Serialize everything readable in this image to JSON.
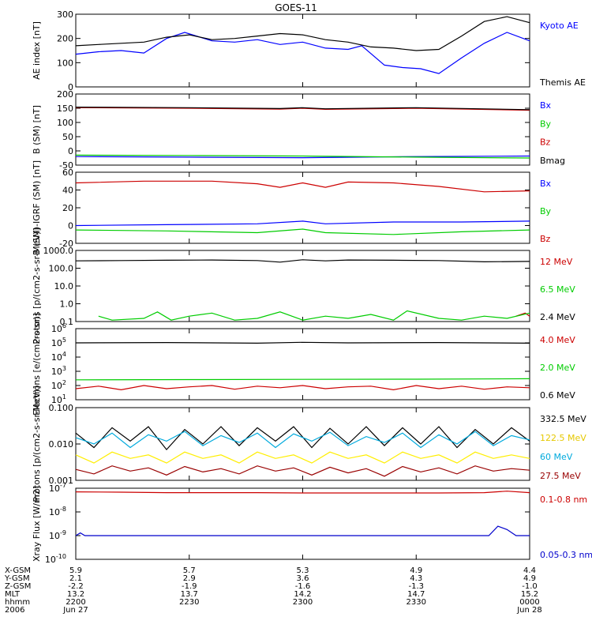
{
  "title": "GOES-11",
  "chart_data": [
    {
      "type": "line",
      "ylabel": "AE index [nT]",
      "ylim": [
        0,
        300
      ],
      "yticks": [
        {
          "v": 0,
          "t": "0"
        },
        {
          "v": 100,
          "t": "100"
        },
        {
          "v": 200,
          "t": "200"
        },
        {
          "v": 300,
          "t": "300"
        }
      ],
      "series": [
        {
          "name": "Kyoto AE",
          "color": "#0000ff",
          "x": [
            0,
            0.05,
            0.1,
            0.15,
            0.2,
            0.24,
            0.3,
            0.35,
            0.4,
            0.45,
            0.5,
            0.55,
            0.6,
            0.63,
            0.68,
            0.72,
            0.76,
            0.8,
            0.85,
            0.9,
            0.95,
            1.0
          ],
          "y": [
            135,
            145,
            150,
            140,
            200,
            225,
            190,
            185,
            195,
            175,
            185,
            160,
            155,
            170,
            90,
            80,
            75,
            55,
            120,
            180,
            225,
            190
          ]
        },
        {
          "name": "Themis AE",
          "color": "#000000",
          "x": [
            0,
            0.05,
            0.1,
            0.15,
            0.2,
            0.25,
            0.3,
            0.35,
            0.4,
            0.45,
            0.5,
            0.55,
            0.6,
            0.65,
            0.7,
            0.75,
            0.8,
            0.85,
            0.9,
            0.95,
            1.0
          ],
          "y": [
            170,
            175,
            180,
            185,
            205,
            215,
            195,
            200,
            210,
            220,
            215,
            195,
            185,
            165,
            160,
            150,
            155,
            210,
            270,
            290,
            265
          ]
        }
      ]
    },
    {
      "type": "line",
      "ylabel": "B (SM) [nT]",
      "ylim": [
        -50,
        200
      ],
      "yticks": [
        {
          "v": -50,
          "t": "-50"
        },
        {
          "v": 0,
          "t": "0"
        },
        {
          "v": 50,
          "t": "50"
        },
        {
          "v": 100,
          "t": "100"
        },
        {
          "v": 150,
          "t": "150"
        },
        {
          "v": 200,
          "t": "200"
        }
      ],
      "series": [
        {
          "name": "Bx",
          "color": "#0000ff",
          "x": [
            0,
            0.25,
            0.5,
            0.75,
            1.0
          ],
          "y": [
            -20,
            -22,
            -24,
            -20,
            -18
          ]
        },
        {
          "name": "By",
          "color": "#00cc00",
          "x": [
            0,
            0.25,
            0.5,
            0.75,
            1.0
          ],
          "y": [
            -15,
            -16,
            -18,
            -22,
            -25
          ]
        },
        {
          "name": "Bz",
          "color": "#cc0000",
          "x": [
            0,
            0.25,
            0.45,
            0.5,
            0.55,
            0.75,
            1.0
          ],
          "y": [
            152,
            150,
            147,
            150,
            146,
            150,
            143
          ]
        },
        {
          "name": "Bmag",
          "color": "#000000",
          "x": [
            0,
            0.25,
            0.45,
            0.5,
            0.55,
            0.75,
            1.0
          ],
          "y": [
            154,
            152,
            149,
            152,
            148,
            152,
            145
          ]
        }
      ]
    },
    {
      "type": "line",
      "ylabel": "B (SM)-IGRF (SM) [nT]",
      "ylim": [
        -20,
        60
      ],
      "yticks": [
        {
          "v": -20,
          "t": "-20"
        },
        {
          "v": 0,
          "t": "0"
        },
        {
          "v": 20,
          "t": "20"
        },
        {
          "v": 40,
          "t": "40"
        },
        {
          "v": 60,
          "t": "60"
        }
      ],
      "series": [
        {
          "name": "Bx",
          "color": "#0000ff",
          "x": [
            0,
            0.2,
            0.4,
            0.5,
            0.55,
            0.7,
            0.85,
            1.0
          ],
          "y": [
            0,
            1,
            2,
            5,
            2,
            4,
            4,
            5
          ]
        },
        {
          "name": "By",
          "color": "#00cc00",
          "x": [
            0,
            0.2,
            0.4,
            0.5,
            0.55,
            0.7,
            0.85,
            1.0
          ],
          "y": [
            -5,
            -6,
            -8,
            -4,
            -8,
            -10,
            -7,
            -5
          ]
        },
        {
          "name": "Bz",
          "color": "#cc0000",
          "x": [
            0,
            0.15,
            0.3,
            0.4,
            0.45,
            0.5,
            0.55,
            0.6,
            0.7,
            0.8,
            0.9,
            1.0
          ],
          "y": [
            48,
            50,
            50,
            47,
            43,
            48,
            43,
            49,
            48,
            44,
            38,
            39
          ]
        }
      ]
    },
    {
      "type": "line",
      "ylabel": "Protons [p/(cm2-s-sr-MeV)]",
      "yscale": "log",
      "ylim": [
        0.1,
        1000
      ],
      "yticks": [
        {
          "v": 0.1,
          "t": "0.1"
        },
        {
          "v": 1,
          "t": "1.0"
        },
        {
          "v": 10,
          "t": "10.0"
        },
        {
          "v": 100,
          "t": "100.0"
        },
        {
          "v": 1000,
          "t": "1000.0"
        }
      ],
      "series": [
        {
          "name": "12 MeV",
          "color": "#cc0000",
          "x": [
            0.97,
            0.99,
            1.0
          ],
          "y": [
            0.2,
            0.3,
            0.2
          ]
        },
        {
          "name": "6.5 MeV",
          "color": "#00cc00",
          "x": [
            0.05,
            0.08,
            0.15,
            0.18,
            0.21,
            0.25,
            0.3,
            0.35,
            0.4,
            0.45,
            0.5,
            0.55,
            0.6,
            0.65,
            0.7,
            0.73,
            0.8,
            0.85,
            0.9,
            0.95,
            1.0
          ],
          "y": [
            0.2,
            0.12,
            0.15,
            0.35,
            0.12,
            0.2,
            0.3,
            0.12,
            0.15,
            0.35,
            0.12,
            0.2,
            0.15,
            0.25,
            0.12,
            0.4,
            0.15,
            0.12,
            0.2,
            0.15,
            0.3
          ]
        },
        {
          "name": "2.4 MeV",
          "color": "#000000",
          "x": [
            0,
            0.1,
            0.2,
            0.3,
            0.4,
            0.45,
            0.5,
            0.55,
            0.6,
            0.7,
            0.8,
            0.9,
            1.0
          ],
          "y": [
            260,
            270,
            280,
            290,
            270,
            220,
            300,
            260,
            290,
            280,
            270,
            230,
            240
          ]
        }
      ]
    },
    {
      "type": "line",
      "ylabel": "Electrons [e/(cm2-s-sr)]",
      "yscale": "log",
      "ylim": [
        10,
        1000000
      ],
      "yticks": [
        {
          "v": 10,
          "t": "10"
        },
        {
          "v": 100,
          "t": "10"
        },
        {
          "v": 1000,
          "t": "10"
        },
        {
          "v": 10000,
          "t": "10"
        },
        {
          "v": 100000,
          "t": "10"
        },
        {
          "v": 1000000,
          "t": "10"
        }
      ],
      "ytick_exponents": [
        "1",
        "2",
        "3",
        "4",
        "5",
        "6"
      ],
      "series": [
        {
          "name": "4.0 MeV",
          "color": "#cc0000",
          "x": [
            0,
            0.05,
            0.1,
            0.15,
            0.2,
            0.25,
            0.3,
            0.35,
            0.4,
            0.45,
            0.5,
            0.55,
            0.6,
            0.65,
            0.7,
            0.75,
            0.8,
            0.85,
            0.9,
            0.95,
            1.0
          ],
          "y": [
            60,
            90,
            50,
            100,
            60,
            80,
            100,
            55,
            90,
            70,
            100,
            60,
            80,
            90,
            50,
            100,
            60,
            90,
            55,
            80,
            70
          ]
        },
        {
          "name": "2.0 MeV",
          "color": "#00cc00",
          "x": [
            0,
            0.25,
            0.5,
            0.75,
            1.0
          ],
          "y": [
            250,
            260,
            270,
            280,
            300
          ]
        },
        {
          "name": "0.6 MeV",
          "color": "#000000",
          "x": [
            0,
            0.2,
            0.4,
            0.5,
            0.6,
            0.8,
            1.0
          ],
          "y": [
            100000,
            105000,
            95000,
            110000,
            100000,
            105000,
            95000
          ]
        }
      ]
    },
    {
      "type": "line",
      "ylabel": "Protons [p/(cm2-s-sr-MeV)]",
      "yscale": "log",
      "ylim": [
        0.001,
        0.1
      ],
      "yticks": [
        {
          "v": 0.001,
          "t": "0.001"
        },
        {
          "v": 0.01,
          "t": "0.010"
        },
        {
          "v": 0.1,
          "t": "0.100"
        }
      ],
      "series": [
        {
          "name": "332.5 MeV",
          "color": "#000000",
          "x": [
            0,
            0.04,
            0.08,
            0.12,
            0.16,
            0.2,
            0.24,
            0.28,
            0.32,
            0.36,
            0.4,
            0.44,
            0.48,
            0.52,
            0.56,
            0.6,
            0.64,
            0.68,
            0.72,
            0.76,
            0.8,
            0.84,
            0.88,
            0.92,
            0.96,
            1.0
          ],
          "y": [
            0.02,
            0.008,
            0.028,
            0.012,
            0.03,
            0.007,
            0.025,
            0.01,
            0.03,
            0.009,
            0.028,
            0.012,
            0.03,
            0.008,
            0.027,
            0.01,
            0.03,
            0.009,
            0.028,
            0.01,
            0.03,
            0.008,
            0.025,
            0.01,
            0.028,
            0.012
          ]
        },
        {
          "name": "122.5 MeV",
          "color": "#ffee00",
          "x": [
            0,
            0.04,
            0.08,
            0.12,
            0.16,
            0.2,
            0.24,
            0.28,
            0.32,
            0.36,
            0.4,
            0.44,
            0.48,
            0.52,
            0.56,
            0.6,
            0.64,
            0.68,
            0.72,
            0.76,
            0.8,
            0.84,
            0.88,
            0.92,
            0.96,
            1.0
          ],
          "y": [
            0.005,
            0.003,
            0.006,
            0.004,
            0.005,
            0.003,
            0.006,
            0.004,
            0.005,
            0.003,
            0.006,
            0.004,
            0.005,
            0.003,
            0.006,
            0.004,
            0.005,
            0.003,
            0.006,
            0.004,
            0.005,
            0.003,
            0.006,
            0.004,
            0.005,
            0.004
          ]
        },
        {
          "name": "60 MeV",
          "color": "#00aadd",
          "x": [
            0,
            0.04,
            0.08,
            0.12,
            0.16,
            0.2,
            0.24,
            0.28,
            0.32,
            0.36,
            0.4,
            0.44,
            0.48,
            0.52,
            0.56,
            0.6,
            0.64,
            0.68,
            0.72,
            0.76,
            0.8,
            0.84,
            0.88,
            0.92,
            0.96,
            1.0
          ],
          "y": [
            0.015,
            0.01,
            0.02,
            0.008,
            0.018,
            0.012,
            0.022,
            0.009,
            0.017,
            0.011,
            0.02,
            0.008,
            0.019,
            0.012,
            0.021,
            0.009,
            0.016,
            0.011,
            0.02,
            0.008,
            0.018,
            0.01,
            0.022,
            0.009,
            0.017,
            0.013
          ]
        },
        {
          "name": "27.5 MeV",
          "color": "#990000",
          "x": [
            0,
            0.04,
            0.08,
            0.12,
            0.16,
            0.2,
            0.24,
            0.28,
            0.32,
            0.36,
            0.4,
            0.44,
            0.48,
            0.52,
            0.56,
            0.6,
            0.64,
            0.68,
            0.72,
            0.76,
            0.8,
            0.84,
            0.88,
            0.92,
            0.96,
            1.0
          ],
          "y": [
            0.002,
            0.0015,
            0.0025,
            0.0018,
            0.0022,
            0.0014,
            0.0024,
            0.0017,
            0.0021,
            0.0015,
            0.0025,
            0.0018,
            0.0022,
            0.0014,
            0.0023,
            0.0016,
            0.0021,
            0.0013,
            0.0024,
            0.0017,
            0.0022,
            0.0015,
            0.0025,
            0.0018,
            0.0021,
            0.0019
          ]
        }
      ]
    },
    {
      "type": "line",
      "ylabel": "Xray Flux [W/m2]",
      "yscale": "log",
      "ylim": [
        1e-10,
        1e-07
      ],
      "yticks": [
        {
          "v": 1e-10,
          "t": "10"
        },
        {
          "v": 1e-09,
          "t": "10"
        },
        {
          "v": 1e-08,
          "t": "10"
        },
        {
          "v": 1e-07,
          "t": "10"
        }
      ],
      "ytick_exponents": [
        "-10",
        "-9",
        "-8",
        "-7"
      ],
      "series": [
        {
          "name": "0.1-0.8 nm",
          "color": "#cc0000",
          "x": [
            0,
            0.1,
            0.2,
            0.4,
            0.5,
            0.6,
            0.8,
            0.9,
            0.95,
            1.0
          ],
          "y": [
            7e-08,
            6.8e-08,
            6.5e-08,
            6.5e-08,
            6.3e-08,
            6.3e-08,
            6.3e-08,
            6.5e-08,
            7.5e-08,
            6.5e-08
          ]
        },
        {
          "name": "0.05-0.3 nm",
          "color": "#0000cc",
          "x": [
            0,
            0.01,
            0.02,
            0.1,
            0.3,
            0.5,
            0.6,
            0.8,
            0.91,
            0.93,
            0.95,
            0.97,
            1.0
          ],
          "y": [
            1e-09,
            1.3e-09,
            1e-09,
            1e-09,
            1e-09,
            1e-09,
            1e-09,
            1e-09,
            1e-09,
            2.5e-09,
            1.8e-09,
            1e-09,
            1e-09
          ]
        }
      ]
    }
  ],
  "footer": {
    "row_labels": [
      "X-GSM",
      "Y-GSM",
      "Z-GSM",
      "MLT",
      "hhmm",
      "2006"
    ],
    "columns": [
      {
        "values": [
          "5.9",
          "2.1",
          "-2.2",
          "13.2",
          "2200",
          "Jun 27"
        ]
      },
      {
        "values": [
          "5.7",
          "2.9",
          "-1.9",
          "13.7",
          "2230",
          ""
        ]
      },
      {
        "values": [
          "5.3",
          "3.6",
          "-1.6",
          "14.2",
          "2300",
          ""
        ]
      },
      {
        "values": [
          "4.9",
          "4.3",
          "-1.3",
          "14.7",
          "2330",
          ""
        ]
      },
      {
        "values": [
          "4.4",
          "4.9",
          "-1.0",
          "15.2",
          "0000",
          "Jun 28"
        ]
      }
    ]
  }
}
